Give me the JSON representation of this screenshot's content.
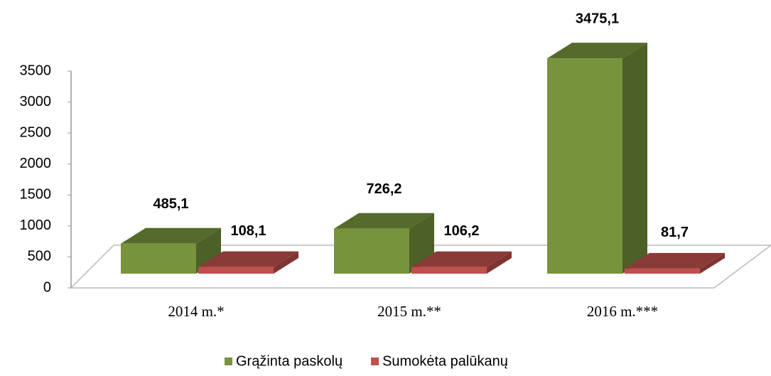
{
  "chart_data": {
    "type": "bar3d",
    "categories": [
      "2014 m.*",
      "2015 m.**",
      "2016 m.***"
    ],
    "series": [
      {
        "name": "Grąžinta paskolų",
        "color": "#77933c",
        "values": [
          485.1,
          726.2,
          3475.1
        ],
        "value_labels": [
          "485,1",
          "726,2",
          "3475,1"
        ]
      },
      {
        "name": "Sumokėta palūkanų",
        "color": "#c0504d",
        "values": [
          108.1,
          106.2,
          81.7
        ],
        "value_labels": [
          "108,1",
          "106,2",
          "81,7"
        ]
      }
    ],
    "ylim": [
      0,
      3500
    ],
    "yticks": [
      0,
      500,
      1000,
      1500,
      2000,
      2500,
      3000,
      3500
    ],
    "legend": "bottom"
  }
}
